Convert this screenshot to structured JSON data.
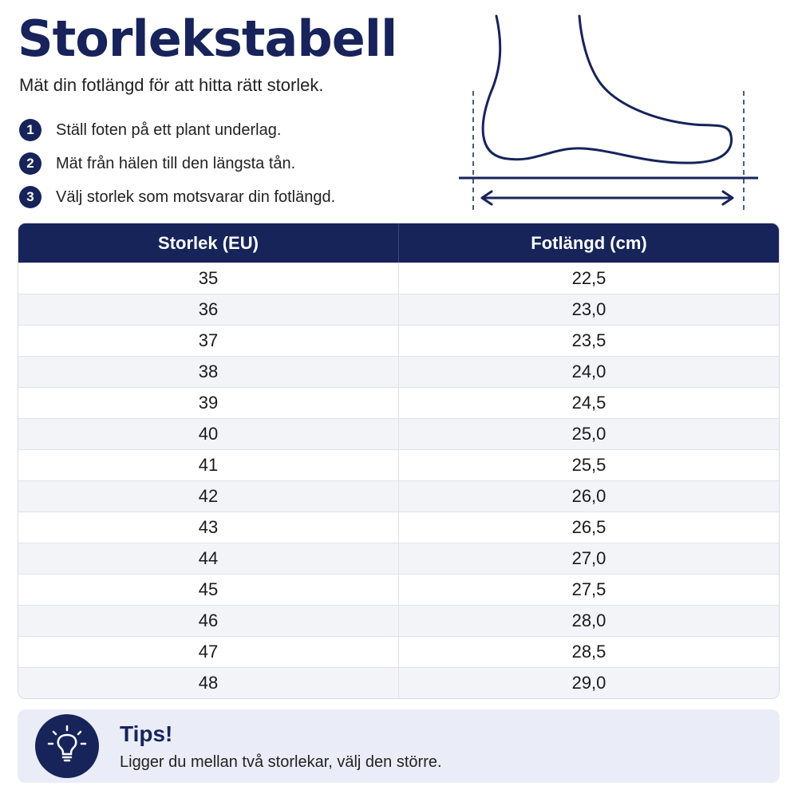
{
  "header": {
    "title": "Storlekstabell",
    "subtitle": "Mät din fotlängd för att hitta rätt storlek."
  },
  "steps": [
    {
      "num": "1",
      "text": "Ställ foten på ett plant underlag."
    },
    {
      "num": "2",
      "text": "Mät från hälen till den längsta tån."
    },
    {
      "num": "3",
      "text": "Välj storlek som motsvarar din fotlängd."
    }
  ],
  "illustration": {
    "icon": "foot-measure-icon"
  },
  "table": {
    "headers": [
      "Storlek (EU)",
      "Fotlängd (cm)"
    ],
    "rows": [
      [
        "35",
        "22,5"
      ],
      [
        "36",
        "23,0"
      ],
      [
        "37",
        "23,5"
      ],
      [
        "38",
        "24,0"
      ],
      [
        "39",
        "24,5"
      ],
      [
        "40",
        "25,0"
      ],
      [
        "41",
        "25,5"
      ],
      [
        "42",
        "26,0"
      ],
      [
        "43",
        "26,5"
      ],
      [
        "44",
        "27,0"
      ],
      [
        "45",
        "27,5"
      ],
      [
        "46",
        "28,0"
      ],
      [
        "47",
        "28,5"
      ],
      [
        "48",
        "29,0"
      ]
    ]
  },
  "tips": {
    "icon": "lightbulb-icon",
    "title": "Tips!",
    "text": "Ligger du mellan två storlekar, välj den större."
  },
  "colors": {
    "navy": "#16245a",
    "row_alt": "#f3f4f8",
    "tips_bg": "#eaedf8"
  }
}
